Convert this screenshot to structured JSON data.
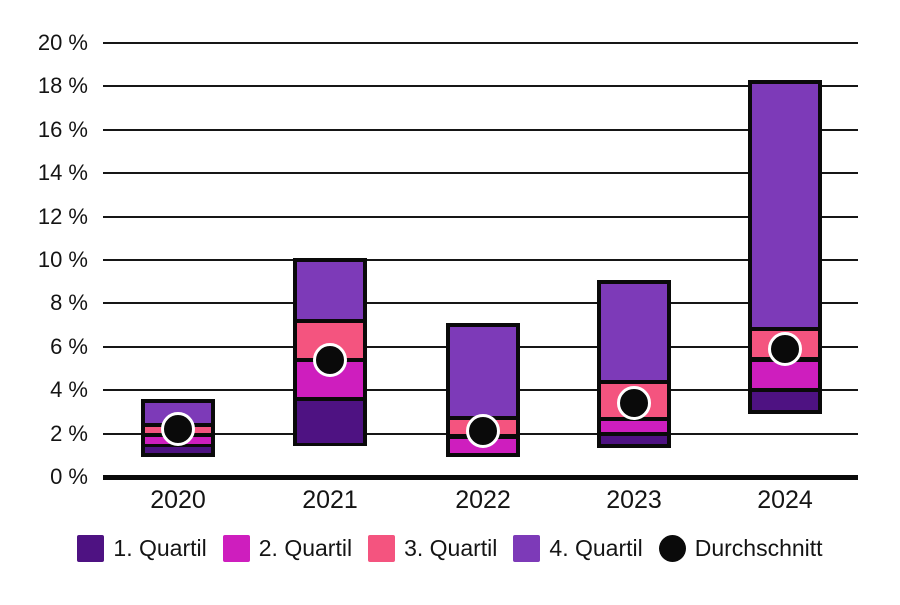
{
  "chart_data": {
    "type": "bar",
    "subtype": "stacked-quartile-range-bars-with-average-dot",
    "title": "",
    "categories": [
      "2020",
      "2021",
      "2022",
      "2023",
      "2024"
    ],
    "y_axis": {
      "min": 0,
      "max": 20,
      "step": 2,
      "unit": "%",
      "tick_labels": [
        "0 %",
        "2 %",
        "4 %",
        "6 %",
        "8 %",
        "10 %",
        "12 %",
        "14 %",
        "16 %",
        "18 %",
        "20 %"
      ]
    },
    "grid": true,
    "legend_position": "bottom",
    "series": [
      {
        "name": "1. Quartil",
        "type": "range",
        "color": "#4E1282",
        "ranges": [
          [
            1.0,
            1.45
          ],
          [
            1.5,
            3.6
          ],
          [
            1.0,
            1.0
          ],
          [
            1.45,
            2.0
          ],
          [
            3.0,
            4.0
          ]
        ]
      },
      {
        "name": "2. Quartil",
        "type": "range",
        "color": "#CE1EBE",
        "ranges": [
          [
            1.45,
            1.95
          ],
          [
            3.6,
            5.4
          ],
          [
            1.0,
            1.85
          ],
          [
            2.0,
            2.7
          ],
          [
            4.0,
            5.4
          ]
        ]
      },
      {
        "name": "3. Quartil",
        "type": "range",
        "color": "#F4547F",
        "ranges": [
          [
            1.95,
            2.4
          ],
          [
            5.4,
            7.2
          ],
          [
            1.85,
            2.7
          ],
          [
            2.7,
            4.4
          ],
          [
            5.4,
            6.8
          ]
        ]
      },
      {
        "name": "4. Quartil",
        "type": "range",
        "color": "#7D3AB8",
        "ranges": [
          [
            2.4,
            3.5
          ],
          [
            7.2,
            10.0
          ],
          [
            2.7,
            7.0
          ],
          [
            4.4,
            9.0
          ],
          [
            6.8,
            18.2
          ]
        ]
      },
      {
        "name": "Durchschnitt",
        "type": "point",
        "color": "#0A0A0A",
        "values": [
          2.2,
          5.4,
          2.1,
          3.4,
          5.9
        ]
      }
    ]
  },
  "styles": {
    "background": "#FFFFFF",
    "grid_color": "#161616",
    "axis_color": "#0A0A0A",
    "bar_outline": "#0A0A0A",
    "dot_ring": "#FFFFFF",
    "text_color": "#141414"
  }
}
